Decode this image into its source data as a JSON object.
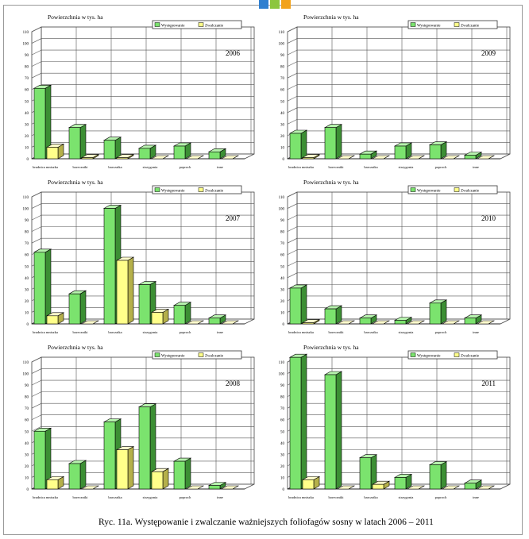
{
  "colors": {
    "wystepowanie_face": "#7be36e",
    "wystepowanie_side": "#3c8f34",
    "wystepowanie_top": "#b6f2ad",
    "zwalczanie_face": "#ffff8a",
    "zwalczanie_side": "#b5b04a",
    "zwalczanie_top": "#fffccd",
    "logo": [
      "#2f7fd0",
      "#8cc63f",
      "#f2a21b"
    ]
  },
  "caption": "Ryc. 11a. Występowanie i zwalczanie ważniejszych foliofagów sosny w latach 2006 – 2011",
  "chart_data": [
    {
      "type": "bar",
      "title": "Powierzchnia w tys. ha",
      "year": "2006",
      "categories": [
        "brudnica mniszka",
        "boreczniki",
        "barczatka",
        "strzygonia",
        "poproch",
        "inne"
      ],
      "ylim": [
        0,
        110
      ],
      "yticks": [
        0,
        10,
        20,
        30,
        40,
        50,
        60,
        70,
        80,
        90,
        100,
        110
      ],
      "grid": true,
      "legend_position": "top-right",
      "series": [
        {
          "name": "Występowanie",
          "values": [
            61,
            27,
            16,
            9,
            11,
            6
          ]
        },
        {
          "name": "Zwalczanie",
          "values": [
            10,
            1,
            1,
            0,
            0,
            0
          ]
        }
      ]
    },
    {
      "type": "bar",
      "title": "Powierzchnia w tys. ha",
      "year": "2009",
      "categories": [
        "brudnica mniszka",
        "boreczniki",
        "barczatka",
        "strzygonia",
        "poproch",
        "inne"
      ],
      "ylim": [
        0,
        110
      ],
      "yticks": [
        0,
        10,
        20,
        30,
        40,
        50,
        60,
        70,
        80,
        90,
        100,
        110
      ],
      "grid": true,
      "legend_position": "top-right",
      "series": [
        {
          "name": "Występowanie",
          "values": [
            22,
            27,
            4,
            11,
            12,
            3
          ]
        },
        {
          "name": "Zwalczanie",
          "values": [
            1,
            0,
            0,
            0,
            0,
            0
          ]
        }
      ]
    },
    {
      "type": "bar",
      "title": "Powierzchnia w tys. ha",
      "year": "2007",
      "categories": [
        "brudnica mniszka",
        "boreczniki",
        "barczatka",
        "strzygonia",
        "poproch",
        "inne"
      ],
      "ylim": [
        0,
        110
      ],
      "yticks": [
        0,
        10,
        20,
        30,
        40,
        50,
        60,
        70,
        80,
        90,
        100,
        110
      ],
      "grid": true,
      "legend_position": "top-right",
      "series": [
        {
          "name": "Występowanie",
          "values": [
            62,
            26,
            100,
            34,
            16,
            5
          ]
        },
        {
          "name": "Zwalczanie",
          "values": [
            7,
            0,
            55,
            10,
            0,
            0
          ]
        }
      ]
    },
    {
      "type": "bar",
      "title": "Powierzchnia w tys. ha",
      "year": "2010",
      "categories": [
        "brudnica mniszka",
        "boreczniki",
        "barczatka",
        "strzygonia",
        "poproch",
        "inne"
      ],
      "ylim": [
        0,
        110
      ],
      "yticks": [
        0,
        10,
        20,
        30,
        40,
        50,
        60,
        70,
        80,
        90,
        100,
        110
      ],
      "grid": true,
      "legend_position": "top-right",
      "series": [
        {
          "name": "Występowanie",
          "values": [
            31,
            13,
            5,
            3,
            18,
            5
          ]
        },
        {
          "name": "Zwalczanie",
          "values": [
            1,
            0,
            0,
            0,
            0,
            0
          ]
        }
      ]
    },
    {
      "type": "bar",
      "title": "Powierzchnia w tys. ha",
      "year": "2008",
      "categories": [
        "brudnica mniszka",
        "boreczniki",
        "barczatka",
        "strzygonia",
        "poproch",
        "inne"
      ],
      "ylim": [
        0,
        110
      ],
      "yticks": [
        0,
        10,
        20,
        30,
        40,
        50,
        60,
        70,
        80,
        90,
        100,
        110
      ],
      "grid": true,
      "legend_position": "top-right",
      "series": [
        {
          "name": "Występowanie",
          "values": [
            50,
            22,
            58,
            71,
            24,
            3
          ]
        },
        {
          "name": "Zwalczanie",
          "values": [
            8,
            0,
            34,
            15,
            0,
            0
          ]
        }
      ]
    },
    {
      "type": "bar",
      "title": "Powierzchnia w tys. ha",
      "year": "2011",
      "categories": [
        "brudnica mniszka",
        "boreczniki",
        "barczatka",
        "strzygonia",
        "poproch",
        "inne"
      ],
      "ylim": [
        0,
        110
      ],
      "yticks": [
        0,
        10,
        20,
        30,
        40,
        50,
        60,
        70,
        80,
        90,
        100,
        110
      ],
      "grid": true,
      "legend_position": "top-right",
      "series": [
        {
          "name": "Występowanie",
          "values": [
            114,
            99,
            27,
            10,
            21,
            5
          ]
        },
        {
          "name": "Zwalczanie",
          "values": [
            8,
            0,
            4,
            0,
            0,
            0
          ]
        }
      ]
    }
  ]
}
